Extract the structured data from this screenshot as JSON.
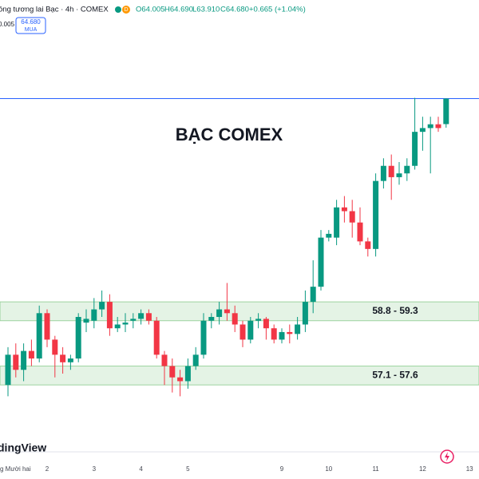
{
  "header": {
    "symbol": "ồng tương lai Bạc · 4h · COMEX",
    "badge": "D",
    "open": "O64.005",
    "high": "H64.690",
    "low": "L63.910",
    "close": "C64.680",
    "change": "+0.665 (+1.04%)",
    "left_value": "0.005",
    "price_box": "64.680",
    "price_box_label": "MUA"
  },
  "logo": "dingView",
  "chart_data": {
    "type": "candlestick",
    "title": "BẠC COMEX",
    "categories": [
      "g Mười hai",
      null,
      null,
      null,
      null,
      "2",
      null,
      null,
      null,
      null,
      null,
      "3",
      null,
      null,
      null,
      null,
      null,
      "4",
      null,
      null,
      null,
      null,
      null,
      "5",
      null,
      null,
      null,
      null,
      null,
      null,
      null,
      null,
      null,
      null,
      null,
      "9",
      null,
      null,
      null,
      null,
      null,
      "10",
      null,
      null,
      null,
      null,
      null,
      "11",
      null,
      null,
      null,
      null,
      null,
      "12",
      null,
      null,
      null,
      null,
      null,
      "13"
    ],
    "open": [
      57.1,
      57.9,
      57.5,
      58.0,
      57.8,
      59.0,
      58.3,
      57.9,
      57.7,
      57.8,
      58.75,
      58.8,
      59.1,
      59.3,
      58.6,
      58.7,
      58.8,
      58.85,
      59.0,
      58.8,
      57.9,
      57.6,
      57.3,
      57.2,
      57.6,
      57.9,
      58.8,
      58.9,
      59.1,
      59.0,
      58.7,
      58.3,
      58.8,
      58.85,
      58.6,
      58.3,
      58.5,
      58.45,
      58.7,
      59.3,
      59.7,
      61.0,
      61.0,
      61.8,
      61.7,
      61.4,
      60.9,
      60.7,
      62.5,
      62.9,
      62.6,
      62.7,
      62.9,
      63.8,
      63.9,
      64.0,
      64.005,
      null,
      null,
      null
    ],
    "high": [
      58.1,
      58.2,
      58.2,
      58.3,
      59.2,
      59.1,
      58.4,
      58.1,
      57.9,
      59.0,
      59.1,
      59.4,
      59.6,
      59.5,
      58.9,
      59.0,
      59.0,
      59.1,
      59.1,
      58.9,
      58.0,
      57.8,
      57.5,
      57.8,
      58.1,
      59.0,
      59.0,
      59.3,
      59.8,
      59.2,
      58.8,
      58.9,
      59.0,
      58.9,
      58.7,
      58.6,
      58.7,
      58.9,
      59.6,
      60.4,
      61.2,
      61.2,
      62.0,
      62.1,
      62.0,
      61.8,
      61.0,
      62.7,
      63.1,
      63.2,
      63.0,
      63.1,
      64.7,
      64.2,
      64.2,
      64.2,
      64.69,
      null,
      null,
      null
    ],
    "low": [
      56.8,
      57.3,
      57.2,
      57.6,
      57.7,
      58.1,
      57.3,
      57.4,
      57.5,
      57.7,
      58.5,
      58.6,
      58.9,
      58.4,
      58.5,
      58.5,
      58.6,
      58.7,
      58.7,
      57.8,
      57.1,
      56.9,
      56.8,
      57.0,
      57.5,
      57.8,
      58.6,
      58.7,
      58.8,
      58.5,
      58.1,
      58.2,
      58.6,
      58.3,
      58.2,
      58.2,
      58.2,
      58.3,
      58.5,
      59.0,
      59.6,
      60.9,
      60.8,
      61.4,
      61.0,
      60.8,
      60.5,
      60.5,
      62.3,
      62.0,
      62.4,
      62.5,
      62.8,
      63.3,
      62.7,
      63.8,
      63.91,
      null,
      null,
      null
    ],
    "close": [
      57.9,
      57.5,
      58.0,
      57.8,
      59.0,
      58.3,
      57.9,
      57.7,
      57.8,
      58.9,
      58.85,
      59.1,
      59.3,
      58.6,
      58.7,
      58.75,
      58.85,
      59.0,
      58.8,
      57.9,
      57.6,
      57.3,
      57.2,
      57.6,
      57.9,
      58.8,
      58.9,
      59.1,
      59.0,
      58.7,
      58.3,
      58.8,
      58.85,
      58.6,
      58.3,
      58.5,
      58.45,
      58.7,
      59.3,
      59.7,
      61.0,
      61.1,
      61.8,
      61.7,
      61.4,
      60.9,
      60.7,
      62.5,
      62.9,
      62.6,
      62.7,
      62.9,
      63.8,
      63.9,
      64.0,
      63.9,
      64.68,
      null,
      null,
      null
    ],
    "up_color": "#089981",
    "down_color": "#f23645",
    "ylim": [
      55.35,
      67.29
    ],
    "zones": [
      {
        "label": "58.8 - 59.3",
        "low": 58.8,
        "high": 59.3
      },
      {
        "label": "57.1 - 57.6",
        "low": 57.1,
        "high": 57.6
      }
    ],
    "zone_color": "#4caf50",
    "price_line_color": "#2962ff"
  }
}
